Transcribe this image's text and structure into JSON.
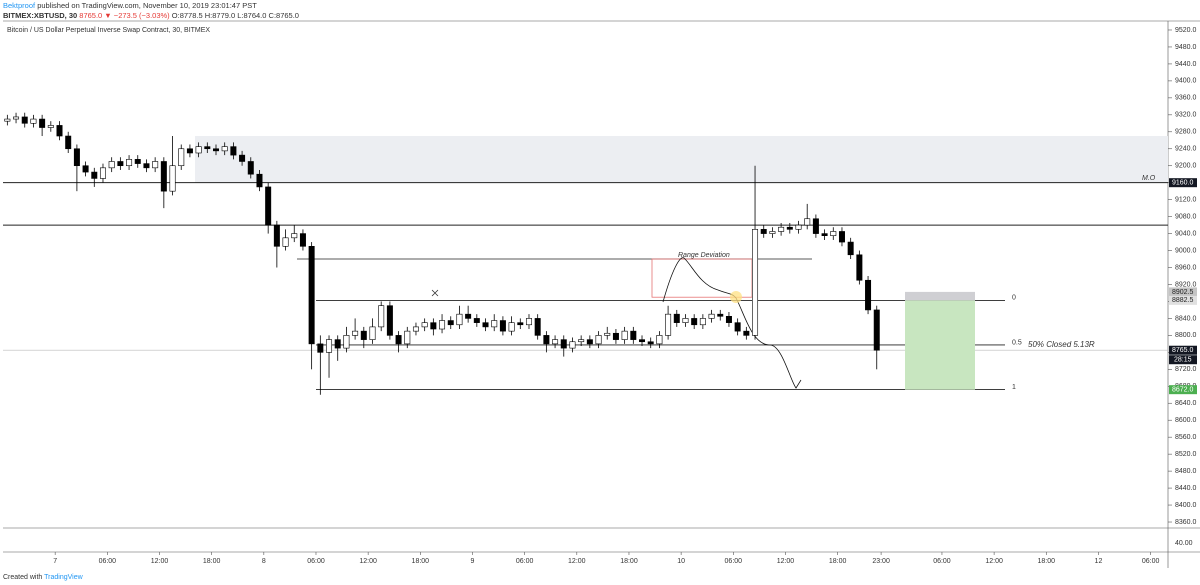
{
  "header": {
    "author": "Bektproof",
    "published": "published on TradingView.com, November 10, 2019 23:01:47 PST",
    "symbol": "BITMEX:XBTUSD, 30",
    "change": "8765.0 ▼ −273.5 (−3.03%)",
    "ohlc": "O:8778.5 H:8779.0 L:8764.0 C:8765.0"
  },
  "footer": {
    "text": "Created with",
    "brand": "TradingView"
  },
  "chart_data": {
    "type": "candlestick",
    "title": "Bitcoin / US Dollar Perpetual Inverse Swap Contract, 30, BITMEX",
    "up_color": "#ffffff",
    "down_color": "#000000",
    "outline_color": "#000000",
    "x": [
      -5.5,
      -4.5,
      -3.5,
      -2.5,
      -1.5,
      -0.5,
      0.5,
      1.5,
      2.5,
      3.5,
      4.5,
      5.5,
      6.5,
      7.5,
      8.5,
      9.5,
      10.5,
      11.5,
      12.5,
      13.5,
      14.5,
      15.5,
      16.5,
      17.5,
      18.5,
      19.5,
      20.5,
      21.5,
      22.5,
      23.5,
      24.5,
      25.5,
      26.5,
      27.5,
      28.5,
      29.5,
      30.5,
      31.5,
      32.5,
      33.5,
      34.5,
      35.5,
      36.5,
      37.5,
      38.5,
      39.5,
      40.5,
      41.5,
      42.5,
      43.5,
      44.5,
      45.5,
      46.5,
      47.5,
      48.5,
      49.5,
      50.5,
      51.5,
      52.5,
      53.5,
      54.5,
      55.5,
      56.5,
      57.5,
      58.5,
      59.5,
      60.5,
      61.5,
      62.5,
      63.5,
      64.5,
      65.5,
      66.5,
      67.5,
      68.5,
      69.5,
      70.5,
      71.5,
      72.5,
      73.5,
      74.5,
      75.5,
      76.5,
      77.5,
      78.5,
      79.5,
      80.5,
      81.5,
      82.5,
      83.5,
      84.5,
      85.5,
      86.5,
      87.5,
      88.5,
      89.5,
      90.5,
      91.5,
      92.5,
      93.5,
      94.5
    ],
    "candles": [
      [
        9305,
        9320,
        9295,
        9310
      ],
      [
        9310,
        9325,
        9300,
        9315
      ],
      [
        9315,
        9325,
        9290,
        9300
      ],
      [
        9300,
        9320,
        9290,
        9310
      ],
      [
        9310,
        9320,
        9270,
        9290
      ],
      [
        9290,
        9305,
        9280,
        9295
      ],
      [
        9295,
        9305,
        9260,
        9270
      ],
      [
        9270,
        9280,
        9230,
        9240
      ],
      [
        9240,
        9250,
        9140,
        9200
      ],
      [
        9200,
        9210,
        9175,
        9185
      ],
      [
        9185,
        9195,
        9150,
        9170
      ],
      [
        9170,
        9205,
        9160,
        9195
      ],
      [
        9195,
        9220,
        9185,
        9210
      ],
      [
        9210,
        9220,
        9190,
        9200
      ],
      [
        9200,
        9225,
        9190,
        9215
      ],
      [
        9215,
        9225,
        9195,
        9205
      ],
      [
        9205,
        9215,
        9185,
        9195
      ],
      [
        9195,
        9220,
        9185,
        9210
      ],
      [
        9210,
        9220,
        9100,
        9140
      ],
      [
        9140,
        9270,
        9130,
        9200
      ],
      [
        9200,
        9250,
        9190,
        9240
      ],
      [
        9240,
        9250,
        9220,
        9230
      ],
      [
        9230,
        9255,
        9220,
        9245
      ],
      [
        9245,
        9255,
        9230,
        9240
      ],
      [
        9240,
        9250,
        9225,
        9235
      ],
      [
        9235,
        9255,
        9225,
        9245
      ],
      [
        9245,
        9255,
        9215,
        9225
      ],
      [
        9225,
        9235,
        9200,
        9210
      ],
      [
        9210,
        9220,
        9170,
        9180
      ],
      [
        9180,
        9190,
        9140,
        9150
      ],
      [
        9150,
        9160,
        9040,
        9060
      ],
      [
        9060,
        9070,
        8960,
        9010
      ],
      [
        9010,
        9050,
        9000,
        9030
      ],
      [
        9030,
        9060,
        9020,
        9040
      ],
      [
        9040,
        9050,
        9000,
        9010
      ],
      [
        9010,
        9020,
        8720,
        8780
      ],
      [
        8780,
        8800,
        8660,
        8760
      ],
      [
        8760,
        8800,
        8700,
        8790
      ],
      [
        8790,
        8800,
        8740,
        8770
      ],
      [
        8770,
        8820,
        8760,
        8800
      ],
      [
        8800,
        8840,
        8790,
        8810
      ],
      [
        8810,
        8820,
        8770,
        8790
      ],
      [
        8790,
        8840,
        8780,
        8820
      ],
      [
        8820,
        8880,
        8810,
        8870
      ],
      [
        8870,
        8880,
        8790,
        8800
      ],
      [
        8800,
        8810,
        8760,
        8780
      ],
      [
        8780,
        8820,
        8770,
        8810
      ],
      [
        8810,
        8830,
        8800,
        8820
      ],
      [
        8820,
        8840,
        8810,
        8830
      ],
      [
        8830,
        8840,
        8800,
        8815
      ],
      [
        8815,
        8850,
        8805,
        8835
      ],
      [
        8835,
        8845,
        8815,
        8825
      ],
      [
        8825,
        8870,
        8815,
        8850
      ],
      [
        8850,
        8870,
        8830,
        8840
      ],
      [
        8840,
        8850,
        8820,
        8830
      ],
      [
        8830,
        8840,
        8810,
        8820
      ],
      [
        8820,
        8850,
        8810,
        8835
      ],
      [
        8835,
        8845,
        8800,
        8810
      ],
      [
        8810,
        8845,
        8800,
        8830
      ],
      [
        8830,
        8840,
        8815,
        8825
      ],
      [
        8825,
        8850,
        8815,
        8840
      ],
      [
        8840,
        8850,
        8790,
        8800
      ],
      [
        8800,
        8810,
        8760,
        8780
      ],
      [
        8780,
        8800,
        8770,
        8790
      ],
      [
        8790,
        8800,
        8750,
        8770
      ],
      [
        8770,
        8795,
        8760,
        8785
      ],
      [
        8785,
        8800,
        8775,
        8790
      ],
      [
        8790,
        8800,
        8770,
        8780
      ],
      [
        8780,
        8810,
        8770,
        8800
      ],
      [
        8800,
        8820,
        8790,
        8805
      ],
      [
        8805,
        8815,
        8780,
        8790
      ],
      [
        8790,
        8820,
        8780,
        8810
      ],
      [
        8810,
        8820,
        8780,
        8790
      ],
      [
        8790,
        8800,
        8775,
        8785
      ],
      [
        8785,
        8795,
        8770,
        8780
      ],
      [
        8780,
        8810,
        8770,
        8800
      ],
      [
        8800,
        8870,
        8790,
        8850
      ],
      [
        8850,
        8860,
        8820,
        8830
      ],
      [
        8830,
        8850,
        8820,
        8840
      ],
      [
        8840,
        8850,
        8815,
        8825
      ],
      [
        8825,
        8850,
        8815,
        8840
      ],
      [
        8840,
        8860,
        8830,
        8850
      ],
      [
        8850,
        8860,
        8835,
        8845
      ],
      [
        8845,
        8855,
        8820,
        8830
      ],
      [
        8830,
        8840,
        8800,
        8810
      ],
      [
        8810,
        8820,
        8790,
        8800
      ],
      [
        8800,
        9200,
        8790,
        9050
      ],
      [
        9050,
        9060,
        9030,
        9040
      ],
      [
        9040,
        9055,
        9030,
        9045
      ],
      [
        9045,
        9065,
        9035,
        9055
      ],
      [
        9055,
        9065,
        9040,
        9050
      ],
      [
        9050,
        9070,
        9040,
        9060
      ],
      [
        9060,
        9110,
        9050,
        9075
      ],
      [
        9075,
        9085,
        9030,
        9040
      ],
      [
        9040,
        9050,
        9025,
        9035
      ],
      [
        9035,
        9055,
        9025,
        9045
      ],
      [
        9045,
        9055,
        9010,
        9020
      ],
      [
        9020,
        9030,
        8980,
        8990
      ],
      [
        8990,
        9000,
        8920,
        8930
      ],
      [
        8930,
        8940,
        8850,
        8860
      ],
      [
        8860,
        8870,
        8720,
        8765
      ]
    ],
    "xlim": [
      -6,
      128
    ],
    "ylim": [
      8340,
      9540
    ],
    "xticks": [
      {
        "value": 0,
        "label": "7"
      },
      {
        "value": 6,
        "label": "06:00"
      },
      {
        "value": 12,
        "label": "12:00"
      },
      {
        "value": 18,
        "label": "18:00"
      },
      {
        "value": 24,
        "label": "8"
      },
      {
        "value": 30,
        "label": "06:00"
      },
      {
        "value": 36,
        "label": "12:00"
      },
      {
        "value": 42,
        "label": "18:00"
      },
      {
        "value": 48,
        "label": "9"
      },
      {
        "value": 54,
        "label": "06:00"
      },
      {
        "value": 60,
        "label": "12:00"
      },
      {
        "value": 66,
        "label": "18:00"
      },
      {
        "value": 72,
        "label": "10"
      },
      {
        "value": 78,
        "label": "06:00"
      },
      {
        "value": 84,
        "label": "12:00"
      },
      {
        "value": 90,
        "label": "18:00"
      },
      {
        "value": 95,
        "label": "23:00"
      },
      {
        "value": 102,
        "label": "06:00"
      },
      {
        "value": 108,
        "label": "12:00"
      },
      {
        "value": 114,
        "label": "18:00"
      },
      {
        "value": 120,
        "label": "12"
      },
      {
        "value": 126,
        "label": "06:00"
      }
    ],
    "yticks": [
      {
        "value": 8360,
        "label": "8360.0"
      },
      {
        "value": 8400,
        "label": "8400.0"
      },
      {
        "value": 8440,
        "label": "8440.0"
      },
      {
        "value": 8480,
        "label": "8480.0"
      },
      {
        "value": 8520,
        "label": "8520.0"
      },
      {
        "value": 8560,
        "label": "8560.0"
      },
      {
        "value": 8600,
        "label": "8600.0"
      },
      {
        "value": 8640,
        "label": "8640.0"
      },
      {
        "value": 8680,
        "label": "8680.0"
      },
      {
        "value": 8720,
        "label": "8720.0"
      },
      {
        "value": 8760,
        "label": "8760.0"
      },
      {
        "value": 8800,
        "label": "8800.0"
      },
      {
        "value": 8840,
        "label": "8840.0"
      },
      {
        "value": 8880,
        "label": "8880.0"
      },
      {
        "value": 8920,
        "label": "8920.0"
      },
      {
        "value": 8960,
        "label": "8960.0"
      },
      {
        "value": 9000,
        "label": "9000.0"
      },
      {
        "value": 9040,
        "label": "9040.0"
      },
      {
        "value": 9080,
        "label": "9080.0"
      },
      {
        "value": 9120,
        "label": "9120.0"
      },
      {
        "value": 9160,
        "label": "9160.0"
      },
      {
        "value": 9200,
        "label": "9200.0"
      },
      {
        "value": 9240,
        "label": "9240.0"
      },
      {
        "value": 9280,
        "label": "9280.0"
      },
      {
        "value": 9320,
        "label": "9320.0"
      },
      {
        "value": 9360,
        "label": "9360.0"
      },
      {
        "value": 9400,
        "label": "9400.0"
      },
      {
        "value": 9440,
        "label": "9440.0"
      },
      {
        "value": 9480,
        "label": "9480.0"
      },
      {
        "value": 9520,
        "label": "9520.0"
      }
    ],
    "grid": false,
    "lower_pane_label": "40.00",
    "zone": [
      9160,
      9270
    ],
    "levels": [
      {
        "value": 9160,
        "name": "M.O"
      },
      {
        "value": 9060
      },
      {
        "value": 8980
      }
    ],
    "fib": [
      {
        "value": 8882.5,
        "label": "0"
      },
      {
        "value": 8777.5,
        "label": "0.5"
      },
      {
        "value": 8672.5,
        "label": "1"
      }
    ],
    "range_box": {
      "label": "Range Deviation",
      "range": [
        8890,
        8980
      ]
    },
    "position": {
      "stop": 8902.5,
      "entry": 8882.5,
      "target": 8672,
      "note": "50% Closed 5.13R"
    },
    "last_price": 8765,
    "price_labels": [
      {
        "value": 9160,
        "label": "9160.0",
        "color": "#131722"
      },
      {
        "value": 8902.5,
        "label": "8902.5",
        "color": "#c4c4c4"
      },
      {
        "value": 8882.5,
        "label": "8882.5",
        "color": "#e0e0e0"
      },
      {
        "value": 8765,
        "label": "8765.0",
        "color": "#131722"
      },
      {
        "value": 8672,
        "label": "8672.0",
        "color": "#4caf50"
      }
    ],
    "countdown": "28:15"
  }
}
